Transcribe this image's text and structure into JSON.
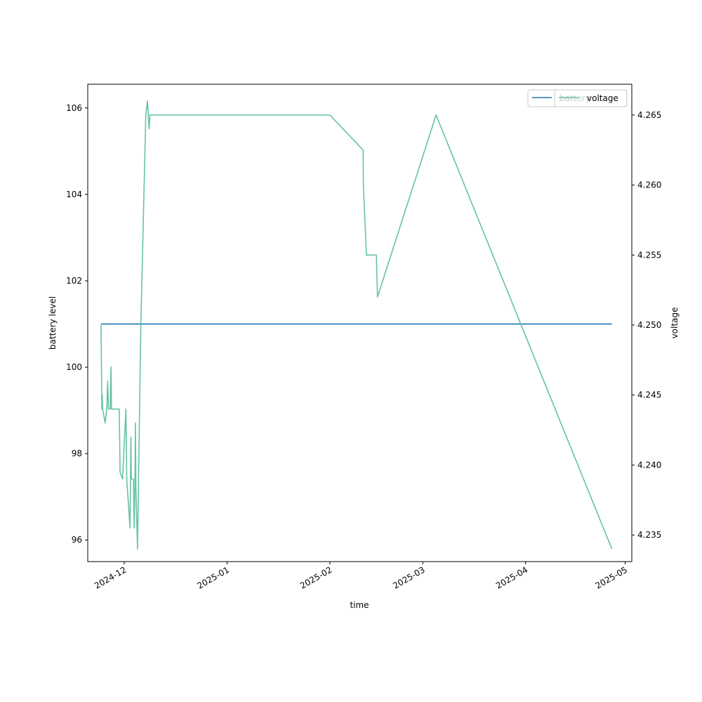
{
  "chart_data": {
    "type": "line",
    "xlabel": "time",
    "ylabel_left": "battery level",
    "ylabel_right": "voltage",
    "x_ticks": [
      "2024-12",
      "2025-01",
      "2025-02",
      "2025-03",
      "2025-04",
      "2025-05"
    ],
    "x_tick_dates": [
      "2024-12-01",
      "2025-01-01",
      "2025-02-01",
      "2025-03-01",
      "2025-04-01",
      "2025-05-01"
    ],
    "xlim": [
      "2024-11-20",
      "2025-05-03"
    ],
    "left_axis": {
      "ylim": [
        95.5,
        106.55
      ],
      "ticks": [
        "96",
        "98",
        "100",
        "102",
        "104",
        "106"
      ]
    },
    "right_axis": {
      "ylim": [
        4.2331,
        4.2672
      ],
      "ticks": [
        "4.235",
        "4.240",
        "4.245",
        "4.250",
        "4.255",
        "4.260",
        "4.265"
      ]
    },
    "legends": [
      {
        "label": "battery",
        "color": "#1f77b4",
        "placement": "upper right"
      },
      {
        "label": "voltage",
        "color": "#66c2a5",
        "placement": "upper right"
      }
    ],
    "series": [
      {
        "name": "battery",
        "axis": "left",
        "color": "#1f77b4",
        "points": [
          {
            "x": "2024-11-24",
            "y": 101.0
          },
          {
            "x": "2025-04-27",
            "y": 101.0
          }
        ]
      },
      {
        "name": "voltage",
        "axis": "right",
        "color": "#66c2a5",
        "points": [
          {
            "x": "2024-11-24T00:00",
            "y": 4.25
          },
          {
            "x": "2024-11-24T06:00",
            "y": 4.244
          },
          {
            "x": "2024-11-24T09:00",
            "y": 4.245
          },
          {
            "x": "2024-11-24T12:00",
            "y": 4.244
          },
          {
            "x": "2024-11-25T06:00",
            "y": 4.243
          },
          {
            "x": "2024-11-25T18:00",
            "y": 4.244
          },
          {
            "x": "2024-11-26T00:00",
            "y": 4.246
          },
          {
            "x": "2024-11-26T06:00",
            "y": 4.244
          },
          {
            "x": "2024-11-26T18:00",
            "y": 4.244
          },
          {
            "x": "2024-11-27T00:00",
            "y": 4.247
          },
          {
            "x": "2024-11-27T04:00",
            "y": 4.244
          },
          {
            "x": "2024-11-29T12:00",
            "y": 4.244
          },
          {
            "x": "2024-11-29T18:00",
            "y": 4.2395
          },
          {
            "x": "2024-11-30T12:00",
            "y": 4.239
          },
          {
            "x": "2024-12-01T12:00",
            "y": 4.244
          },
          {
            "x": "2024-12-01T18:00",
            "y": 4.239
          },
          {
            "x": "2024-12-02T18:00",
            "y": 4.2355
          },
          {
            "x": "2024-12-03T00:00",
            "y": 4.242
          },
          {
            "x": "2024-12-03T03:00",
            "y": 4.239
          },
          {
            "x": "2024-12-03T18:00",
            "y": 4.239
          },
          {
            "x": "2024-12-04T00:00",
            "y": 4.2355
          },
          {
            "x": "2024-12-04T06:00",
            "y": 4.239
          },
          {
            "x": "2024-12-04T09:00",
            "y": 4.243
          },
          {
            "x": "2024-12-04T12:00",
            "y": 4.2385
          },
          {
            "x": "2024-12-05T00:00",
            "y": 4.234
          },
          {
            "x": "2024-12-05T06:00",
            "y": 4.238
          },
          {
            "x": "2024-12-06T00:00",
            "y": 4.25
          },
          {
            "x": "2024-12-07T12:00",
            "y": 4.265
          },
          {
            "x": "2024-12-08T00:00",
            "y": 4.266
          },
          {
            "x": "2024-12-08T12:00",
            "y": 4.264
          },
          {
            "x": "2024-12-08T18:00",
            "y": 4.265
          },
          {
            "x": "2025-02-01T00:00",
            "y": 4.265
          },
          {
            "x": "2025-02-11T00:00",
            "y": 4.2625
          },
          {
            "x": "2025-02-11T02:00",
            "y": 4.26
          },
          {
            "x": "2025-02-12T00:00",
            "y": 4.255
          },
          {
            "x": "2025-02-15T00:00",
            "y": 4.255
          },
          {
            "x": "2025-02-15T08:00",
            "y": 4.252
          },
          {
            "x": "2025-03-05T00:00",
            "y": 4.265
          },
          {
            "x": "2025-04-27T00:00",
            "y": 4.234
          }
        ]
      }
    ]
  }
}
